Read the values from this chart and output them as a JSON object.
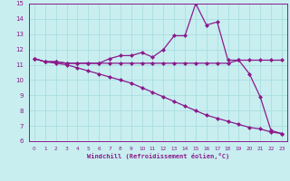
{
  "x": [
    0,
    1,
    2,
    3,
    4,
    5,
    6,
    7,
    8,
    9,
    10,
    11,
    12,
    13,
    14,
    15,
    16,
    17,
    18,
    19,
    20,
    21,
    22,
    23
  ],
  "line1": [
    11.4,
    11.2,
    11.2,
    11.1,
    11.1,
    11.1,
    11.1,
    11.4,
    11.6,
    11.6,
    11.8,
    11.5,
    12.0,
    12.9,
    12.9,
    15.0,
    13.6,
    13.8,
    11.3,
    11.3,
    10.4,
    8.9,
    6.7,
    6.5
  ],
  "line2": [
    11.4,
    11.2,
    11.2,
    11.1,
    11.1,
    11.1,
    11.1,
    11.1,
    11.1,
    11.1,
    11.1,
    11.1,
    11.1,
    11.1,
    11.1,
    11.1,
    11.1,
    11.1,
    11.1,
    11.3,
    11.3,
    11.3,
    11.3,
    11.3
  ],
  "line3": [
    11.4,
    11.2,
    11.1,
    11.0,
    10.8,
    10.6,
    10.4,
    10.2,
    10.0,
    9.8,
    9.5,
    9.2,
    8.9,
    8.6,
    8.3,
    8.0,
    7.7,
    7.5,
    7.3,
    7.1,
    6.9,
    6.8,
    6.6,
    6.5
  ],
  "line_color": "#8B1A8B",
  "bg_color": "#c8eef0",
  "grid_color": "#aadee0",
  "xlabel": "Windchill (Refroidissement éolien,°C)",
  "ylim": [
    6,
    15
  ],
  "xlim_min": -0.5,
  "xlim_max": 23.5,
  "yticks": [
    6,
    7,
    8,
    9,
    10,
    11,
    12,
    13,
    14,
    15
  ],
  "xticks": [
    0,
    1,
    2,
    3,
    4,
    5,
    6,
    7,
    8,
    9,
    10,
    11,
    12,
    13,
    14,
    15,
    16,
    17,
    18,
    19,
    20,
    21,
    22,
    23
  ],
  "marker": "D",
  "markersize": 2.0,
  "linewidth": 0.9
}
